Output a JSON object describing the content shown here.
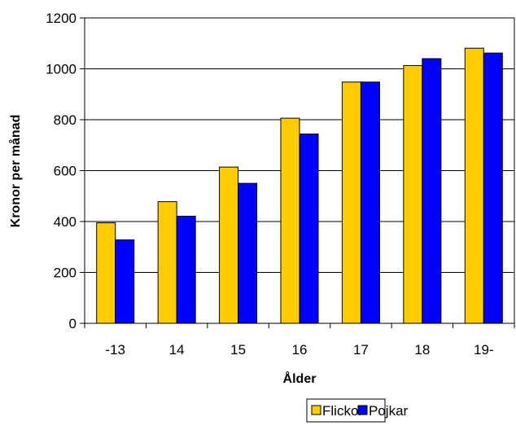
{
  "chart_data": {
    "type": "bar",
    "title": "",
    "xlabel": "Ålder",
    "ylabel": "Kronor per månad",
    "categories": [
      "-13",
      "14",
      "15",
      "16",
      "17",
      "18",
      "19-"
    ],
    "series": [
      {
        "name": "Flickor",
        "values": [
          395,
          478,
          614,
          806,
          948,
          1013,
          1081
        ]
      },
      {
        "name": "Pojkar",
        "values": [
          328,
          421,
          550,
          744,
          948,
          1040,
          1062
        ]
      }
    ],
    "ylim": [
      0,
      1200
    ],
    "yticks": [
      "0",
      "200",
      "400",
      "600",
      "800",
      "1000",
      "1200"
    ],
    "grid": true,
    "legend": "bottom",
    "colors": {
      "Flickor": "#FFCC00",
      "Pojkar": "#0000FF"
    }
  }
}
